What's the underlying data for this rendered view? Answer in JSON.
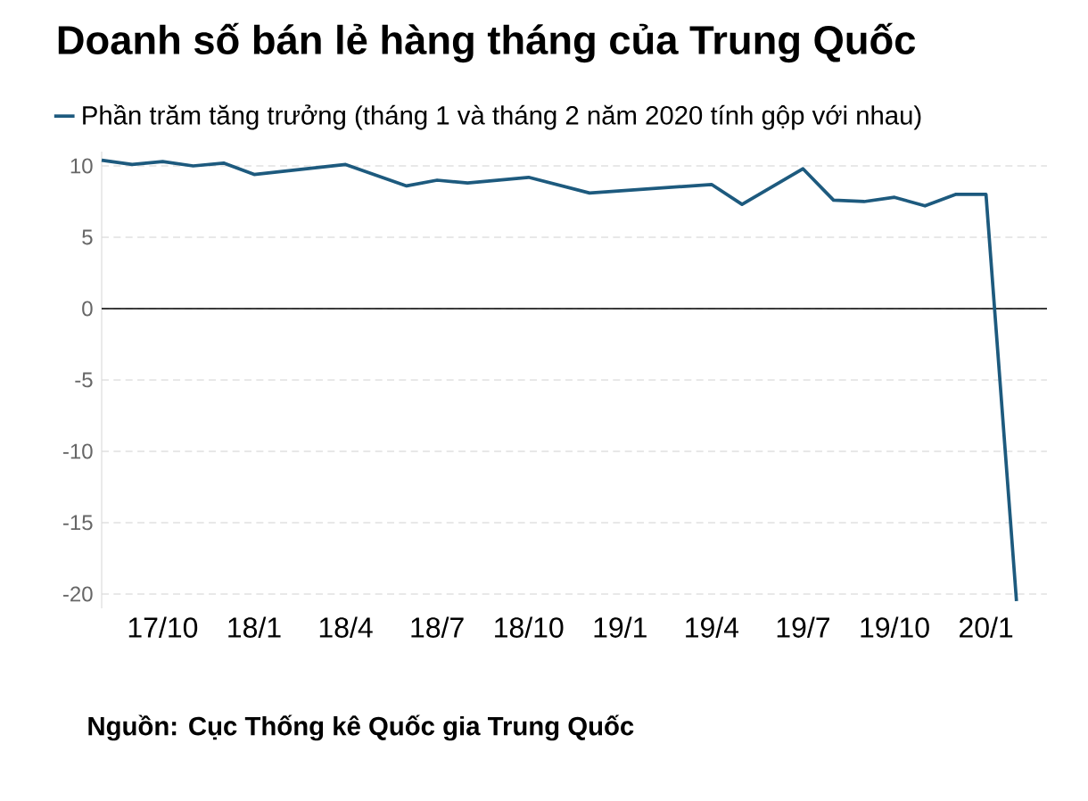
{
  "chart_data": {
    "type": "line",
    "title": "Doanh số bán lẻ hàng tháng của Trung Quốc",
    "x": [
      "2017-08",
      "2017-09",
      "2017-10",
      "2017-11",
      "2017-12",
      "2018-01",
      "2018-04",
      "2018-06",
      "2018-07",
      "2018-08",
      "2018-10",
      "2018-12",
      "2019-04",
      "2019-05",
      "2019-07",
      "2019-08",
      "2019-09",
      "2019-10",
      "2019-11",
      "2019-12",
      "2020-01",
      "2020-02"
    ],
    "series": [
      {
        "name": "Phần trăm tăng trưởng (tháng 1 và tháng 2 năm 2020 tính gộp với nhau)",
        "color": "#1d5a7e",
        "values": [
          10.4,
          10.1,
          10.3,
          10.0,
          10.2,
          9.4,
          10.1,
          8.6,
          9.0,
          8.8,
          9.2,
          8.1,
          8.7,
          7.3,
          9.8,
          7.6,
          7.5,
          7.8,
          7.2,
          8.0,
          8.0,
          -20.5
        ]
      }
    ],
    "xlim": [
      "2017-08",
      "2020-03"
    ],
    "xticks": [
      {
        "value": "2017-10",
        "label": "17/10"
      },
      {
        "value": "2018-01",
        "label": "18/1"
      },
      {
        "value": "2018-04",
        "label": "18/4"
      },
      {
        "value": "2018-07",
        "label": "18/7"
      },
      {
        "value": "2018-10",
        "label": "18/10"
      },
      {
        "value": "2019-01",
        "label": "19/1"
      },
      {
        "value": "2019-04",
        "label": "19/4"
      },
      {
        "value": "2019-07",
        "label": "19/7"
      },
      {
        "value": "2019-10",
        "label": "19/10"
      },
      {
        "value": "2020-01",
        "label": "20/1"
      }
    ],
    "ylim": [
      -21,
      11
    ],
    "yticks": [
      {
        "value": -20,
        "label": "-20"
      },
      {
        "value": -15,
        "label": "-15"
      },
      {
        "value": -10,
        "label": "-10"
      },
      {
        "value": -5,
        "label": "-5"
      },
      0,
      5,
      10
    ],
    "ref_lines": [
      {
        "axis": "y",
        "value": 0,
        "color": "#000000"
      }
    ],
    "grid": "y",
    "legend": "top left",
    "marker": "none",
    "line_style": "solid",
    "annotations": [
      "Nguồn: Cục Thống kê Quốc gia Trung Quốc"
    ]
  }
}
